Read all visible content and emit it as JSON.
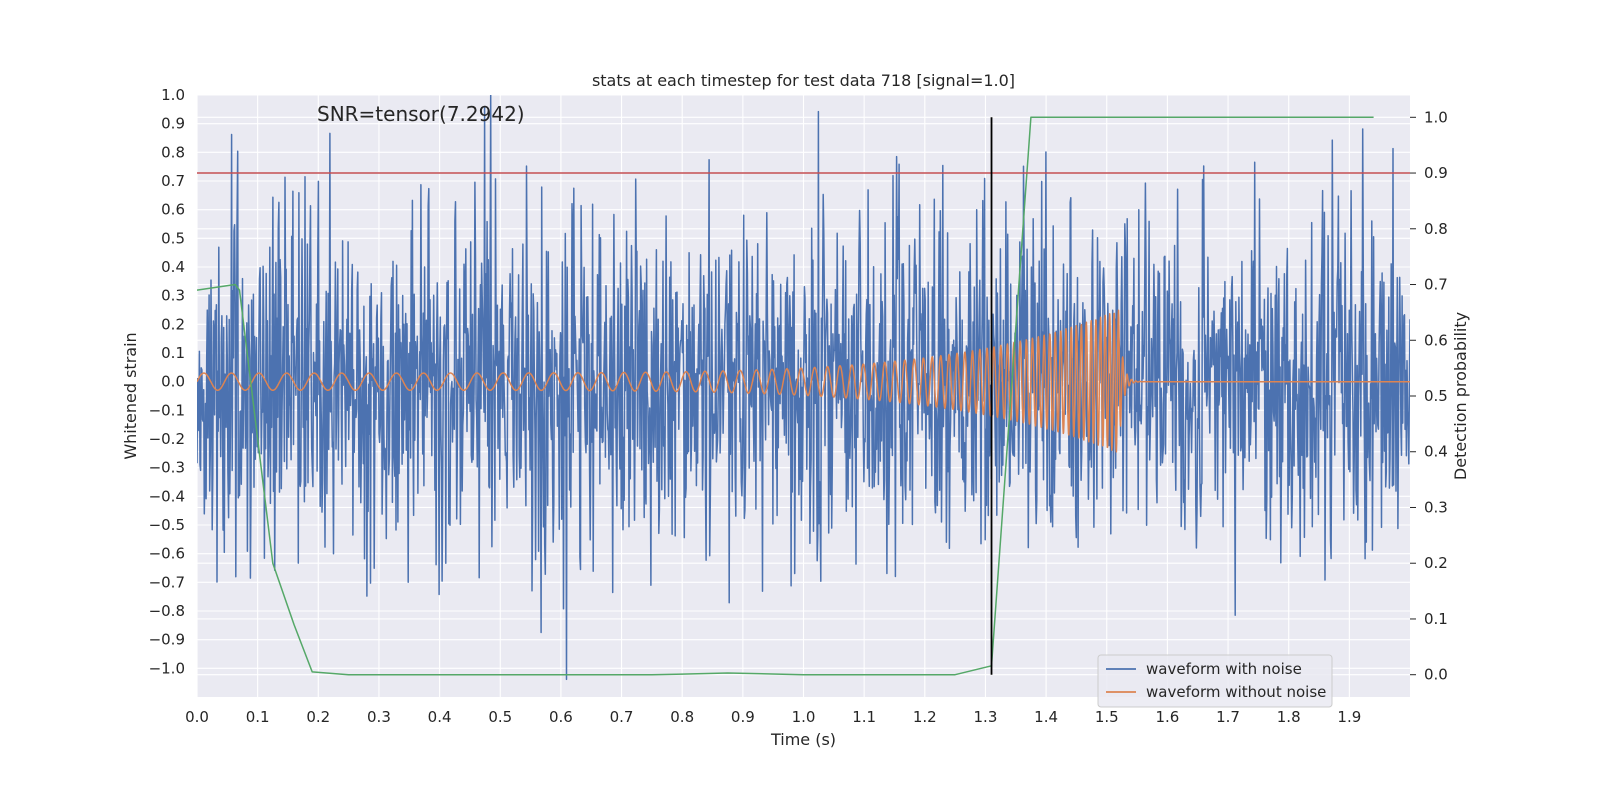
{
  "chart_data": {
    "type": "line",
    "title": "stats at each timestep for test data 718 [signal=1.0]",
    "annotation": "SNR=tensor(7.2942)",
    "xlabel": "Time (s)",
    "ylabel": "Whitened strain",
    "y2label": "Detection probability",
    "xlim": [
      0.0,
      2.0
    ],
    "ylim": [
      -1.1,
      1.0
    ],
    "y2lim": [
      -0.04,
      1.04
    ],
    "xticks": [
      0.0,
      0.1,
      0.2,
      0.3,
      0.4,
      0.5,
      0.6,
      0.7,
      0.8,
      0.9,
      1.0,
      1.1,
      1.2,
      1.3,
      1.4,
      1.5,
      1.6,
      1.7,
      1.8,
      1.9
    ],
    "xtick_labels": [
      "0.0",
      "0.1",
      "0.2",
      "0.3",
      "0.4",
      "0.5",
      "0.6",
      "0.7",
      "0.8",
      "0.9",
      "1.0",
      "1.1",
      "1.2",
      "1.3",
      "1.4",
      "1.5",
      "1.6",
      "1.7",
      "1.8",
      "1.9"
    ],
    "yticks": [
      1.0,
      0.9,
      0.8,
      0.7,
      0.6,
      0.5,
      0.4,
      0.3,
      0.2,
      0.1,
      0.0,
      -0.1,
      -0.2,
      -0.3,
      -0.4,
      -0.5,
      -0.6,
      -0.7,
      -0.8,
      -0.9,
      -1.0
    ],
    "ytick_labels": [
      "1.0",
      "0.9",
      "0.8",
      "0.7",
      "0.6",
      "0.5",
      "0.4",
      "0.3",
      "0.2",
      "0.1",
      "0.0",
      "−0.1",
      "−0.2",
      "−0.3",
      "−0.4",
      "−0.5",
      "−0.6",
      "−0.7",
      "−0.8",
      "−0.9",
      "−1.0"
    ],
    "y2ticks": [
      1.0,
      0.9,
      0.8,
      0.7,
      0.6,
      0.5,
      0.4,
      0.3,
      0.2,
      0.1,
      0.0
    ],
    "y2tick_labels": [
      "1.0",
      "0.9",
      "0.8",
      "0.7",
      "0.6",
      "0.5",
      "0.4",
      "0.3",
      "0.2",
      "0.1",
      "0.0"
    ],
    "threshold": {
      "value": 0.9,
      "axis": "right",
      "color": "#c44e52"
    },
    "event_marker": {
      "x": 1.31,
      "y2_range": [
        0.0,
        1.0
      ],
      "color": "#000000"
    },
    "legend": {
      "location": "lower-right",
      "entries": [
        "waveform with noise",
        "waveform without noise"
      ]
    },
    "series": [
      {
        "name": "waveform with noise",
        "color": "#4c72b0",
        "axis": "left",
        "kind": "gaussian-noise",
        "x_range": [
          0.0,
          2.0
        ],
        "n_samples": 2000,
        "noise_std": 0.3,
        "clip": [
          -1.1,
          1.0
        ]
      },
      {
        "name": "waveform without noise",
        "color": "#dd8452",
        "axis": "left",
        "kind": "chirp",
        "start_time": 0.0,
        "merger_time": 1.52,
        "end_time": 2.0,
        "start_frequency_hz": 22,
        "merger_frequency_hz": 140,
        "start_amplitude": 0.03,
        "merger_amplitude": 0.25,
        "ringdown_amplitude": 0.0
      },
      {
        "name": "detection probability",
        "color": "#55a868",
        "axis": "right",
        "x": [
          0.0,
          0.063,
          0.07,
          0.125,
          0.16,
          0.19,
          0.25,
          0.375,
          0.5,
          0.625,
          0.75,
          0.8,
          0.875,
          1.0,
          1.125,
          1.25,
          1.31,
          1.375,
          1.5,
          1.625,
          1.75,
          1.875,
          1.94
        ],
        "values": [
          0.69,
          0.7,
          0.69,
          0.2,
          0.09,
          0.005,
          0.0,
          0.0,
          0.0,
          0.0,
          0.0,
          0.001,
          0.003,
          0.0,
          0.0,
          0.0,
          0.016,
          1.0,
          1.0,
          1.0,
          1.0,
          1.0,
          1.0
        ]
      }
    ]
  }
}
